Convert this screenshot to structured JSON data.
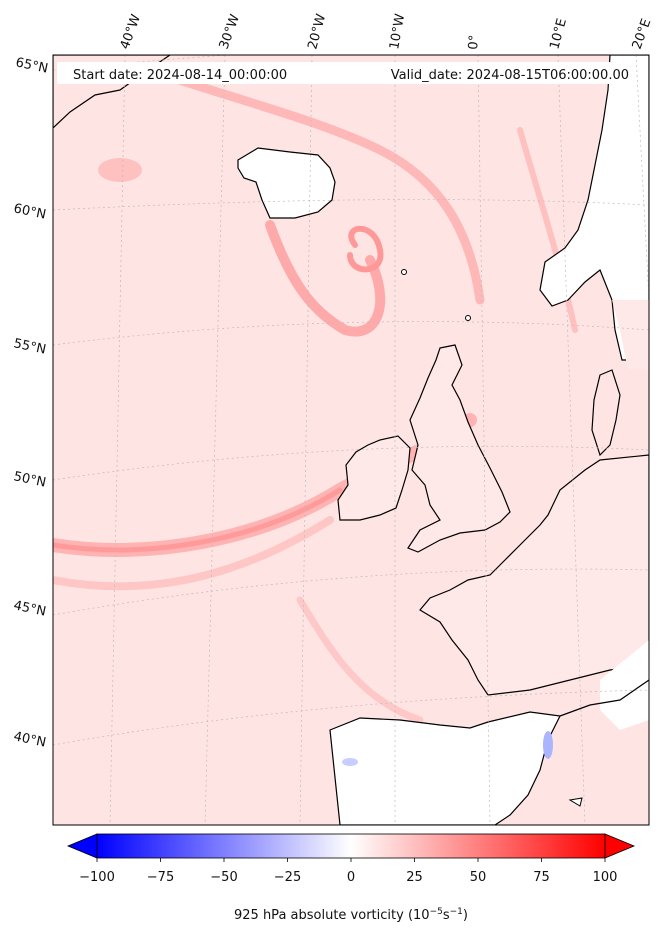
{
  "header": {
    "start_date": "Start date: 2024-08-14_00:00:00",
    "valid_date": "Valid_date: 2024-08-15T06:00:00.00"
  },
  "longitude_labels": [
    "40°W",
    "30°W",
    "20°W",
    "10°W",
    "0°",
    "10°E",
    "20°E"
  ],
  "latitude_labels": [
    "65°N",
    "60°N",
    "55°N",
    "50°N",
    "45°N",
    "40°N"
  ],
  "colorbar": {
    "title": "925 hPa absolute vorticity (10",
    "title_exp": "−5",
    "title_unit": "s",
    "title_unit_exp": "−1",
    "title_end": ")",
    "ticks": [
      "−100",
      "−75",
      "−50",
      "−25",
      "0",
      "25",
      "50",
      "75",
      "100"
    ],
    "min": -100,
    "max": 100,
    "extend": "both",
    "colors": {
      "negative": "#0000ff",
      "zero": "#ffffff",
      "positive": "#ff0000"
    }
  },
  "map": {
    "ocean_fill": "#ffe4e4",
    "coastline_color": "#000000",
    "gridline_color": "#bbbbbb"
  }
}
